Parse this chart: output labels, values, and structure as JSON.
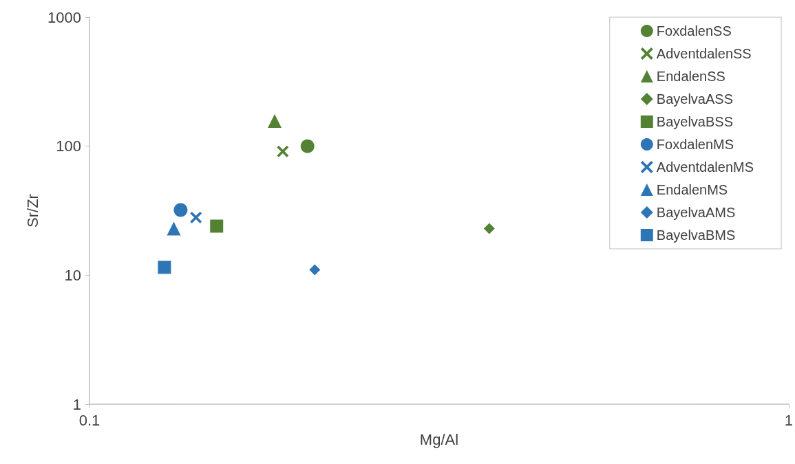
{
  "chart_data": {
    "type": "scatter",
    "xlabel": "Mg/Al",
    "ylabel": "Sr/Zr",
    "log": "xy",
    "xlim": [
      0.1,
      1
    ],
    "xticks": [
      0.1,
      1
    ],
    "ylim": [
      1,
      1000
    ],
    "yticks": [
      1,
      10,
      100,
      1000
    ],
    "grid": false,
    "legend": "top right",
    "series": [
      {
        "name": "FoxdalenSS",
        "color": "#548235",
        "marker": "circle",
        "x": [
          0.205
        ],
        "values": [
          100
        ]
      },
      {
        "name": "AdventdalenSS",
        "color": "#548235",
        "marker": "cross",
        "x": [
          0.189
        ],
        "values": [
          91
        ]
      },
      {
        "name": "EndalenSS",
        "color": "#548235",
        "marker": "triangle",
        "x": [
          0.184
        ],
        "values": [
          157
        ]
      },
      {
        "name": "BayelvaASS",
        "color": "#548235",
        "marker": "diamond",
        "x": [
          0.373
        ],
        "values": [
          23
        ]
      },
      {
        "name": "BayelvaBSS",
        "color": "#548235",
        "marker": "square",
        "x": [
          0.152
        ],
        "values": [
          24
        ]
      },
      {
        "name": "FoxdalenMS",
        "color": "#2e75b6",
        "marker": "circle",
        "x": [
          0.135
        ],
        "values": [
          32
        ]
      },
      {
        "name": "AdventdalenMS",
        "color": "#2e75b6",
        "marker": "cross",
        "x": [
          0.142
        ],
        "values": [
          28
        ]
      },
      {
        "name": "EndalenMS",
        "color": "#2e75b6",
        "marker": "triangle",
        "x": [
          0.132
        ],
        "values": [
          23
        ]
      },
      {
        "name": "BayelvaAMS",
        "color": "#2e75b6",
        "marker": "diamond",
        "x": [
          0.21
        ],
        "values": [
          11
        ]
      },
      {
        "name": "BayelvaBMS",
        "color": "#2e75b6",
        "marker": "square",
        "x": [
          0.128
        ],
        "values": [
          11.5
        ]
      }
    ]
  }
}
